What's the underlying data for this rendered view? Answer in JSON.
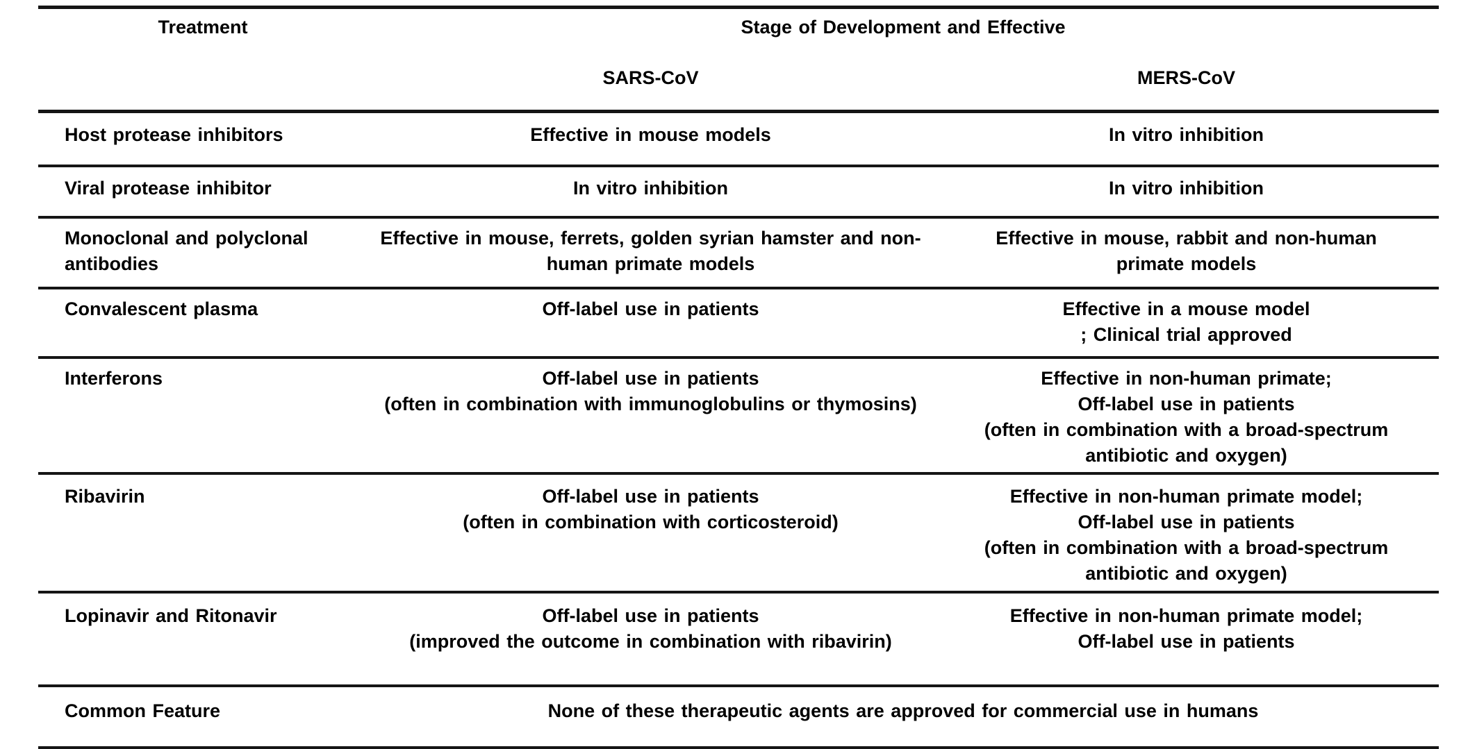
{
  "table": {
    "header": {
      "treatment": "Treatment",
      "stage": "Stage of Development and Effective",
      "sars": "SARS-CoV",
      "mers": "MERS-CoV"
    },
    "rows": [
      {
        "treatment": "Host protease inhibitors",
        "sars": "Effective in mouse models",
        "mers": "In vitro inhibition"
      },
      {
        "treatment": "Viral protease inhibitor",
        "sars": "In vitro inhibition",
        "mers": "In vitro inhibition"
      },
      {
        "treatment": "Monoclonal and polyclonal\nantibodies",
        "sars": "Effective in mouse, ferrets, golden syrian hamster and non-\nhuman primate models",
        "mers": "Effective in mouse, rabbit and non-human\nprimate models"
      },
      {
        "treatment": "Convalescent plasma",
        "sars": "Off-label use in patients",
        "mers": "Effective in a mouse model\n; Clinical trial approved"
      },
      {
        "treatment": "Interferons",
        "sars": "Off-label use in patients\n(often in combination with immunoglobulins or thymosins)",
        "mers": "Effective in non-human primate;\nOff-label use in patients\n(often in combination with a broad-spectrum\nantibiotic and oxygen)"
      },
      {
        "treatment": "Ribavirin",
        "sars": "Off-label use in patients\n(often in combination with corticosteroid)",
        "mers": "Effective in non-human primate model;\nOff-label use in patients\n(often in combination with a broad-spectrum\nantibiotic and oxygen)"
      },
      {
        "treatment": "Lopinavir and Ritonavir",
        "sars": "Off-label use in patients\n(improved the outcome in combination with ribavirin)",
        "mers": "Effective in non-human primate model;\nOff-label use in patients"
      }
    ],
    "footer": {
      "treatment": "Common Feature",
      "value": "None of these therapeutic agents are approved for commercial use in humans"
    },
    "colors": {
      "text": "#000000",
      "rule": "#151515",
      "background": "#ffffff"
    }
  }
}
